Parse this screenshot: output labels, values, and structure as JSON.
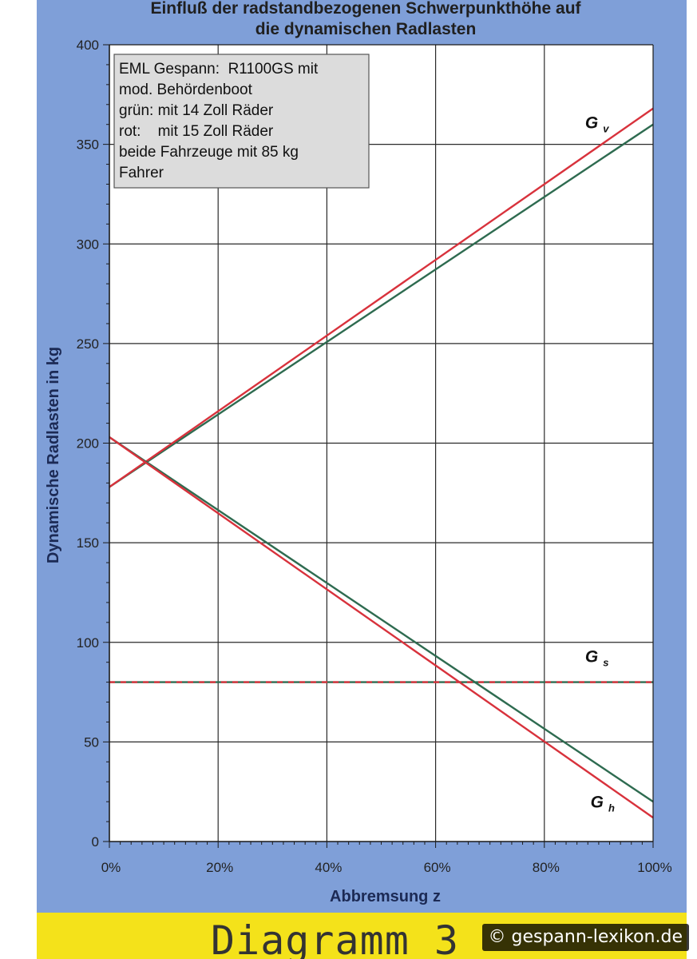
{
  "chart_data": {
    "type": "line",
    "title_lines": [
      "Einfluß der radstandbezogenen Schwerpunkthöhe auf",
      "die dynamischen Radlasten"
    ],
    "xlabel": "Abbremsung z",
    "ylabel": "Dynamische Radlasten in kg",
    "xlim": [
      0,
      1
    ],
    "ylim": [
      0,
      400
    ],
    "x_ticks": [
      {
        "v": 0,
        "label": "0%"
      },
      {
        "v": 0.2,
        "label": "20%"
      },
      {
        "v": 0.4,
        "label": "40%"
      },
      {
        "v": 0.6,
        "label": "60%"
      },
      {
        "v": 0.8,
        "label": "80%"
      },
      {
        "v": 1.0,
        "label": "100%"
      }
    ],
    "y_ticks": [
      {
        "v": 0,
        "label": "0"
      },
      {
        "v": 50,
        "label": "50"
      },
      {
        "v": 100,
        "label": "100"
      },
      {
        "v": 150,
        "label": "150"
      },
      {
        "v": 200,
        "label": "200"
      },
      {
        "v": 250,
        "label": "250"
      },
      {
        "v": 300,
        "label": "300"
      },
      {
        "v": 350,
        "label": "350"
      },
      {
        "v": 400,
        "label": "400"
      }
    ],
    "grid": true,
    "legend_box": {
      "position": "top-left",
      "lines": [
        "EML Gespann:  R1100GS mit",
        "mod. Behördenboot",
        "grün: mit 14 Zoll Räder",
        "rot:    mit 15 Zoll Räder",
        "beide Fahrzeuge mit 85 kg",
        "Fahrer"
      ]
    },
    "series": [
      {
        "id": "gv_green",
        "color": "#2e6b50",
        "x": [
          0,
          1
        ],
        "y": [
          178,
          360
        ]
      },
      {
        "id": "gv_red",
        "color": "#d8323c",
        "x": [
          0,
          1
        ],
        "y": [
          178,
          368
        ]
      },
      {
        "id": "gh_green",
        "color": "#2e6b50",
        "x": [
          0,
          1
        ],
        "y": [
          203,
          20
        ]
      },
      {
        "id": "gh_red",
        "color": "#d8323c",
        "x": [
          0,
          1
        ],
        "y": [
          203,
          12
        ]
      },
      {
        "id": "gs_green",
        "color": "#2e6b50",
        "dashed": false,
        "x": [
          0,
          1
        ],
        "y": [
          80,
          80
        ]
      },
      {
        "id": "gs_red",
        "color": "#d8323c",
        "dashed": true,
        "x": [
          0,
          1
        ],
        "y": [
          80,
          80
        ]
      }
    ],
    "series_labels": [
      {
        "main": "G",
        "sub": "v",
        "x": 0.875,
        "y": 358
      },
      {
        "main": "G",
        "sub": "s",
        "x": 0.875,
        "y": 90
      },
      {
        "main": "G",
        "sub": "h",
        "x": 0.885,
        "y": 17
      }
    ]
  },
  "footer": {
    "text": "Diagramm 3",
    "copyright": "© gespann-lexikon.de"
  }
}
